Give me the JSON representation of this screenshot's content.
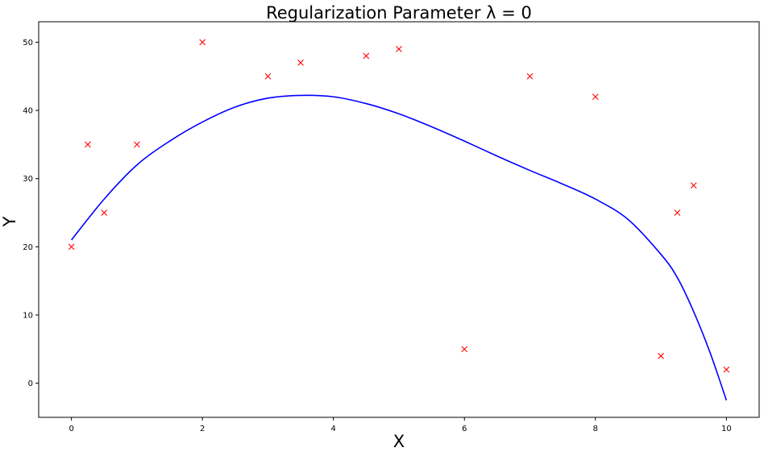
{
  "chart_data": {
    "type": "scatter",
    "title": "Regularization Parameter λ = 0",
    "xlabel": "X",
    "ylabel": "Y",
    "xlim": [
      -0.5,
      10.5
    ],
    "ylim": [
      -5,
      53
    ],
    "x_ticks": [
      0,
      2,
      4,
      6,
      8,
      10
    ],
    "x_tick_labels": [
      "0",
      "2",
      "4",
      "6",
      "8",
      "10"
    ],
    "y_ticks": [
      0,
      10,
      20,
      30,
      40,
      50
    ],
    "y_tick_labels": [
      "0",
      "10",
      "20",
      "30",
      "40",
      "50"
    ],
    "grid": false,
    "colors": {
      "points": "#ff0000",
      "fit": "#0000ff"
    },
    "series": [
      {
        "kind": "scatter",
        "marker": "x",
        "x": [
          0,
          0.25,
          0.5,
          1,
          2,
          3,
          3.5,
          4.5,
          5,
          6,
          7,
          8,
          9,
          9.25,
          9.5,
          10
        ],
        "y": [
          20,
          35,
          25,
          35,
          50,
          45,
          47,
          48,
          49,
          5,
          45,
          42,
          4,
          25,
          29,
          2
        ]
      },
      {
        "kind": "line",
        "x": [
          0,
          0.5,
          1,
          1.5,
          2,
          2.5,
          3,
          3.5,
          4,
          4.5,
          5,
          5.5,
          6,
          6.5,
          7,
          7.5,
          8,
          8.5,
          9,
          9.25,
          9.5,
          9.75,
          10
        ],
        "y": [
          21,
          27,
          32,
          35.5,
          38.3,
          40.5,
          41.8,
          42.2,
          42,
          41,
          39.5,
          37.6,
          35.5,
          33.3,
          31.2,
          29.2,
          27,
          24,
          18.9,
          15.5,
          10.5,
          4.5,
          -2.5
        ]
      }
    ]
  }
}
